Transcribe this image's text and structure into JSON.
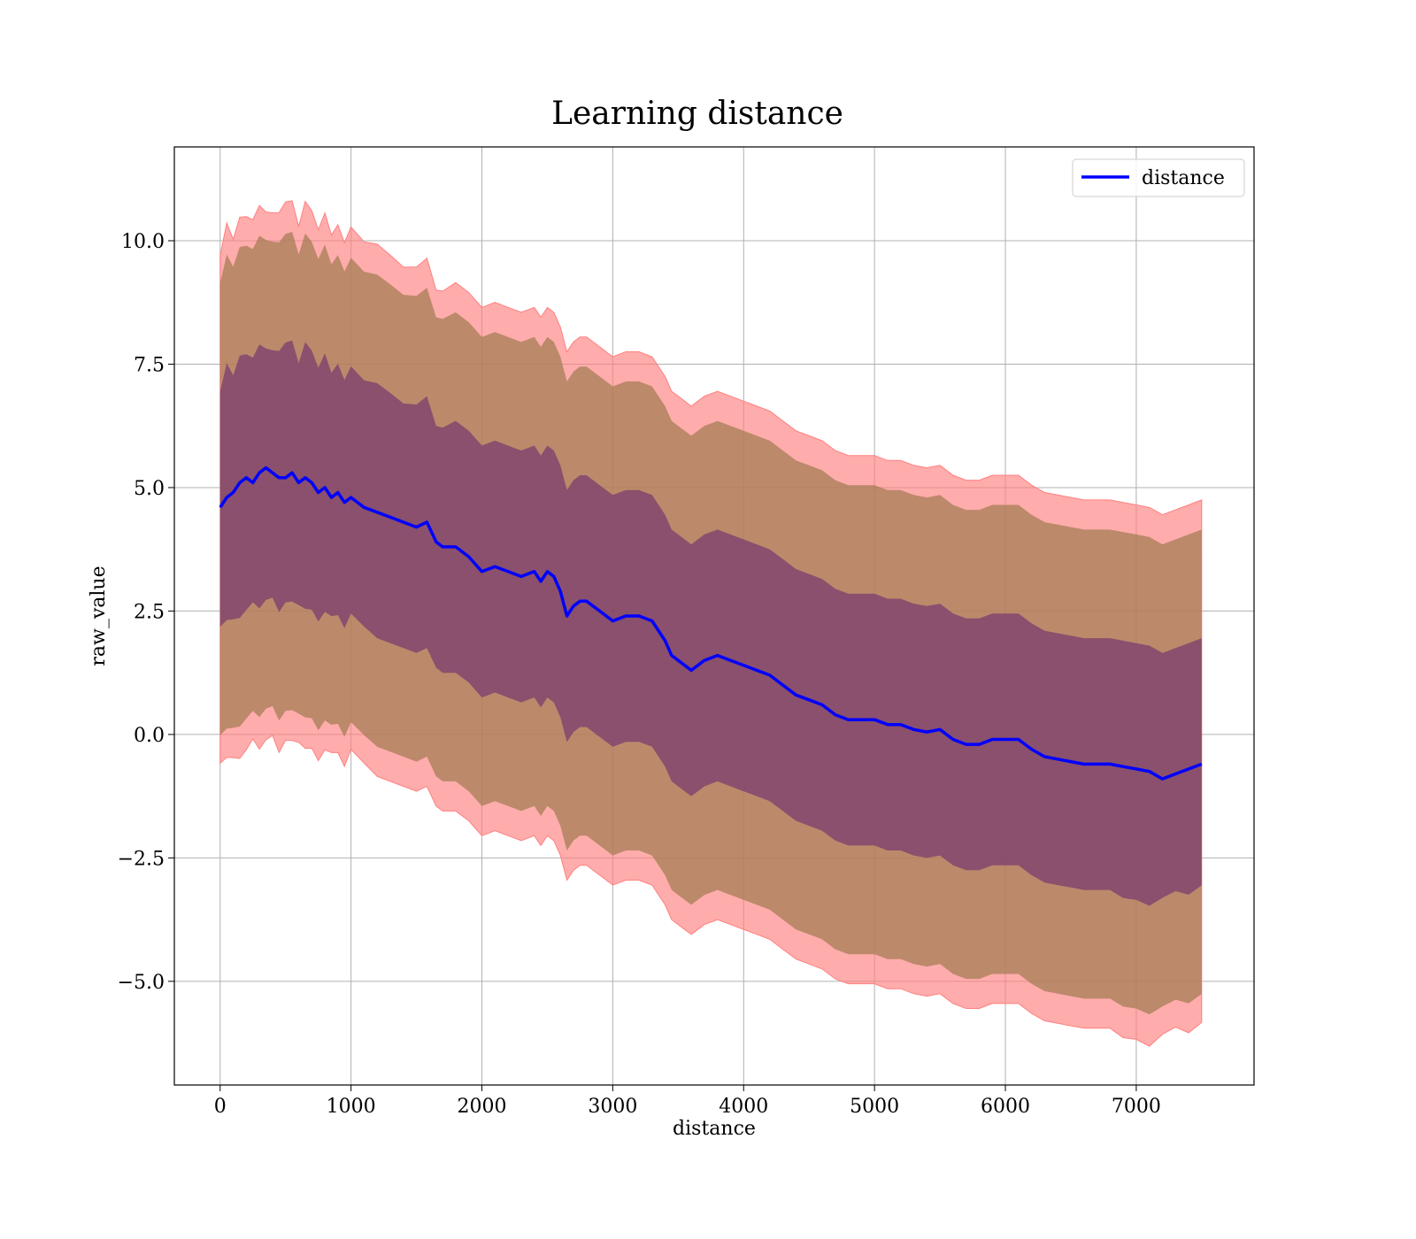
{
  "chart_data": {
    "type": "area",
    "title": "Learning distance",
    "xlabel": "distance",
    "ylabel": "raw_value",
    "xlim": [
      -350,
      7900
    ],
    "ylim": [
      -7.1,
      11.9
    ],
    "x_ticks": [
      0,
      1000,
      2000,
      3000,
      4000,
      5000,
      6000,
      7000
    ],
    "x_tick_labels": [
      "0",
      "1000",
      "2000",
      "3000",
      "4000",
      "5000",
      "6000",
      "7000"
    ],
    "y_ticks": [
      -5.0,
      -2.5,
      0.0,
      2.5,
      5.0,
      7.5,
      10.0
    ],
    "y_tick_labels": [
      "−5.0",
      "−2.5",
      "0.0",
      "2.5",
      "5.0",
      "7.5",
      "10.0"
    ],
    "grid": true,
    "legend": {
      "position": "top-right",
      "entries": [
        "distance"
      ]
    },
    "colors": {
      "line": "#0000ff",
      "band_outer": "#ff8080",
      "band_middle": "#a07a50",
      "band_inner": "#7a3d6e"
    },
    "band_offsets": {
      "outer": 5.35,
      "middle": 4.75,
      "inner": 2.55
    },
    "series": [
      {
        "name": "distance",
        "x": [
          0,
          50,
          100,
          150,
          200,
          250,
          300,
          350,
          400,
          450,
          500,
          550,
          600,
          650,
          700,
          750,
          800,
          850,
          900,
          950,
          1000,
          1100,
          1200,
          1300,
          1400,
          1500,
          1580,
          1650,
          1700,
          1800,
          1900,
          2000,
          2100,
          2200,
          2300,
          2400,
          2450,
          2500,
          2550,
          2600,
          2650,
          2700,
          2750,
          2800,
          2900,
          3000,
          3100,
          3200,
          3300,
          3400,
          3450,
          3500,
          3550,
          3600,
          3650,
          3700,
          3800,
          3900,
          4000,
          4100,
          4200,
          4300,
          4400,
          4500,
          4600,
          4700,
          4800,
          4900,
          5000,
          5100,
          5200,
          5300,
          5400,
          5500,
          5600,
          5700,
          5800,
          5900,
          6000,
          6100,
          6200,
          6300,
          6400,
          6500,
          6600,
          6700,
          6800,
          6900,
          7000,
          7100,
          7200,
          7300,
          7400,
          7500
        ],
        "y": [
          4.6,
          4.8,
          4.9,
          5.1,
          5.2,
          5.1,
          5.3,
          5.4,
          5.3,
          5.2,
          5.2,
          5.3,
          5.1,
          5.2,
          5.1,
          4.9,
          5.0,
          4.8,
          4.9,
          4.7,
          4.8,
          4.6,
          4.5,
          4.4,
          4.3,
          4.2,
          4.3,
          3.9,
          3.8,
          3.8,
          3.6,
          3.3,
          3.4,
          3.3,
          3.2,
          3.3,
          3.1,
          3.3,
          3.2,
          2.9,
          2.4,
          2.6,
          2.7,
          2.7,
          2.5,
          2.3,
          2.4,
          2.4,
          2.3,
          1.9,
          1.6,
          1.5,
          1.4,
          1.3,
          1.4,
          1.5,
          1.6,
          1.5,
          1.4,
          1.3,
          1.2,
          1.0,
          0.8,
          0.7,
          0.6,
          0.4,
          0.3,
          0.3,
          0.3,
          0.2,
          0.2,
          0.1,
          0.05,
          0.1,
          -0.1,
          -0.2,
          -0.2,
          -0.1,
          -0.1,
          -0.1,
          -0.3,
          -0.45,
          -0.5,
          -0.55,
          -0.6,
          -0.6,
          -0.6,
          -0.65,
          -0.7,
          -0.75,
          -0.9,
          -0.8,
          -0.7,
          -0.6
        ]
      }
    ]
  }
}
